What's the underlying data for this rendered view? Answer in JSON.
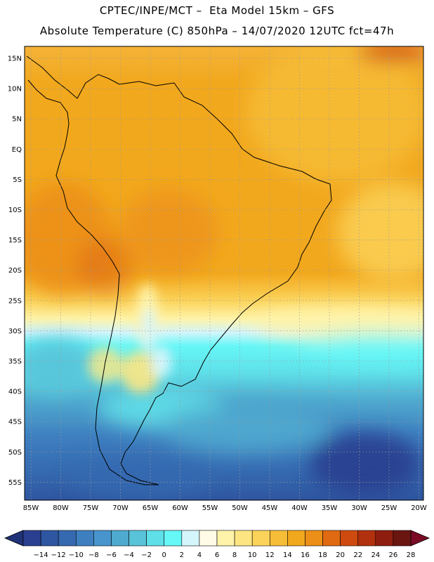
{
  "header": {
    "title_line1": "CPTEC/INPE/MCT –  Eta Model 15km – GFS",
    "title_line2": "Absolute Temperature (C) 850hPa – 14/07/2020 12UTC fct=47h"
  },
  "map": {
    "lat_labels": [
      "15N",
      "10N",
      "5N",
      "EQ",
      "5S",
      "10S",
      "15S",
      "20S",
      "25S",
      "30S",
      "35S",
      "40S",
      "45S",
      "50S",
      "55S"
    ],
    "lon_labels": [
      "85W",
      "80W",
      "75W",
      "70W",
      "65W",
      "60W",
      "55W",
      "50W",
      "45W",
      "40W",
      "35W",
      "30W",
      "25W",
      "20W"
    ]
  },
  "colorbar": {
    "labels": [
      "-14",
      "-12",
      "-10",
      "-8",
      "-6",
      "-4",
      "-2",
      "0",
      "2",
      "4",
      "6",
      "8",
      "10",
      "12",
      "14",
      "16",
      "18",
      "20",
      "22",
      "24",
      "26",
      "28"
    ],
    "colors": [
      "#2a3f8f",
      "#2f56a0",
      "#3569b0",
      "#3e7fc0",
      "#4795cc",
      "#4faacf",
      "#58c3d9",
      "#5fdfe8",
      "#66f7f7",
      "#d4f5fb",
      "#fffbe6",
      "#fef3a8",
      "#fde682",
      "#fbd35a",
      "#f6bd39",
      "#f2a81d",
      "#ec8f18",
      "#e06a11",
      "#cf4a0e",
      "#b1300d",
      "#8f1d0f",
      "#6b1511"
    ],
    "low_color": "#1f3278",
    "high_color": "#7a0a25"
  }
}
